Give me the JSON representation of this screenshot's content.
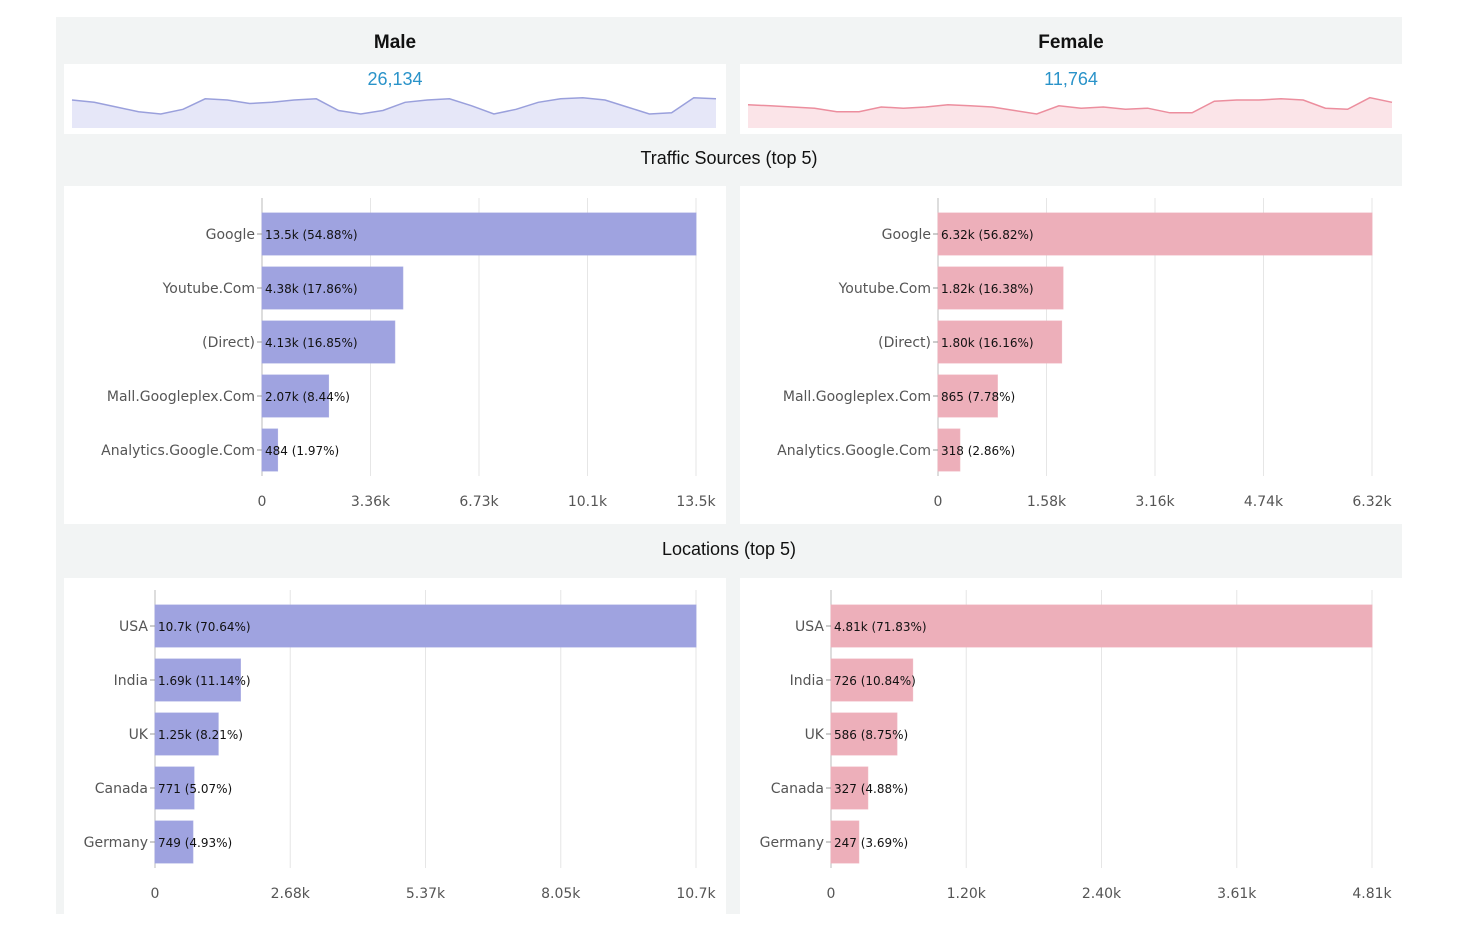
{
  "headers": {
    "male": "Male",
    "female": "Female",
    "traffic": "Traffic Sources (top 5)",
    "locations": "Locations (top 5)"
  },
  "kpi": {
    "male_value": "26,134",
    "female_value": "11,764"
  },
  "colors": {
    "male": "#9fa3e0",
    "male_line": "#9aa0dc",
    "male_fill": "#e6e7f8",
    "female": "#edafba",
    "female_line": "#ec8e9e",
    "female_fill": "#fbe4e8",
    "accent": "#2a93c9"
  },
  "chart_data": [
    {
      "id": "male-sparkline",
      "type": "area",
      "x": [
        1,
        2,
        3,
        4,
        5,
        6,
        7,
        8,
        9,
        10,
        11,
        12,
        13,
        14,
        15,
        16,
        17,
        18,
        19,
        20,
        21,
        22,
        23,
        24,
        25,
        26,
        27,
        28,
        29,
        30
      ],
      "values": [
        24,
        22,
        18,
        14,
        12,
        16,
        25,
        24,
        21,
        22,
        24,
        25,
        15,
        12,
        15,
        22,
        24,
        25,
        19,
        12,
        16,
        22,
        25,
        26,
        24,
        18,
        12,
        13,
        26,
        25
      ],
      "ylim": [
        0,
        36
      ]
    },
    {
      "id": "female-sparkline",
      "type": "area",
      "x": [
        1,
        2,
        3,
        4,
        5,
        6,
        7,
        8,
        9,
        10,
        11,
        12,
        13,
        14,
        15,
        16,
        17,
        18,
        19,
        20,
        21,
        22,
        23,
        24,
        25,
        26,
        27,
        28,
        29,
        30
      ],
      "values": [
        20,
        19,
        18,
        17,
        14,
        14,
        18,
        17,
        18,
        20,
        19,
        18,
        15,
        12,
        19,
        17,
        18,
        16,
        17,
        13,
        13,
        23,
        24,
        24,
        25,
        24,
        17,
        16,
        26,
        22
      ],
      "ylim": [
        0,
        36
      ]
    },
    {
      "id": "male-traffic",
      "type": "bar",
      "orientation": "horizontal",
      "categories": [
        "Google",
        "Youtube.Com",
        "(Direct)",
        "Mall.Googleplex.Com",
        "Analytics.Google.Com"
      ],
      "values": [
        13500,
        4380,
        4130,
        2070,
        484
      ],
      "labels": [
        "13.5k (54.88%)",
        "4.38k (17.86%)",
        "4.13k (16.85%)",
        "2.07k (8.44%)",
        "484 (1.97%)"
      ],
      "xticks": [
        "0",
        "3.36k",
        "6.73k",
        "10.1k",
        "13.5k"
      ],
      "xlim": [
        0,
        13500
      ],
      "grid": true
    },
    {
      "id": "female-traffic",
      "type": "bar",
      "orientation": "horizontal",
      "categories": [
        "Google",
        "Youtube.Com",
        "(Direct)",
        "Mall.Googleplex.Com",
        "Analytics.Google.Com"
      ],
      "values": [
        6320,
        1820,
        1800,
        865,
        318
      ],
      "labels": [
        "6.32k (56.82%)",
        "1.82k (16.38%)",
        "1.80k (16.16%)",
        "865 (7.78%)",
        "318 (2.86%)"
      ],
      "xticks": [
        "0",
        "1.58k",
        "3.16k",
        "4.74k",
        "6.32k"
      ],
      "xlim": [
        0,
        6320
      ],
      "grid": true
    },
    {
      "id": "male-locations",
      "type": "bar",
      "orientation": "horizontal",
      "categories": [
        "USA",
        "India",
        "UK",
        "Canada",
        "Germany"
      ],
      "values": [
        10700,
        1690,
        1250,
        771,
        749
      ],
      "labels": [
        "10.7k (70.64%)",
        "1.69k (11.14%)",
        "1.25k (8.21%)",
        "771 (5.07%)",
        "749 (4.93%)"
      ],
      "xticks": [
        "0",
        "2.68k",
        "5.37k",
        "8.05k",
        "10.7k"
      ],
      "xlim": [
        0,
        10700
      ],
      "grid": true
    },
    {
      "id": "female-locations",
      "type": "bar",
      "orientation": "horizontal",
      "categories": [
        "USA",
        "India",
        "UK",
        "Canada",
        "Germany"
      ],
      "values": [
        4810,
        726,
        586,
        327,
        247
      ],
      "labels": [
        "4.81k (71.83%)",
        "726 (10.84%)",
        "586 (8.75%)",
        "327 (4.88%)",
        "247 (3.69%)"
      ],
      "xticks": [
        "0",
        "1.20k",
        "2.40k",
        "3.61k",
        "4.81k"
      ],
      "xlim": [
        0,
        4810
      ],
      "grid": true
    }
  ]
}
